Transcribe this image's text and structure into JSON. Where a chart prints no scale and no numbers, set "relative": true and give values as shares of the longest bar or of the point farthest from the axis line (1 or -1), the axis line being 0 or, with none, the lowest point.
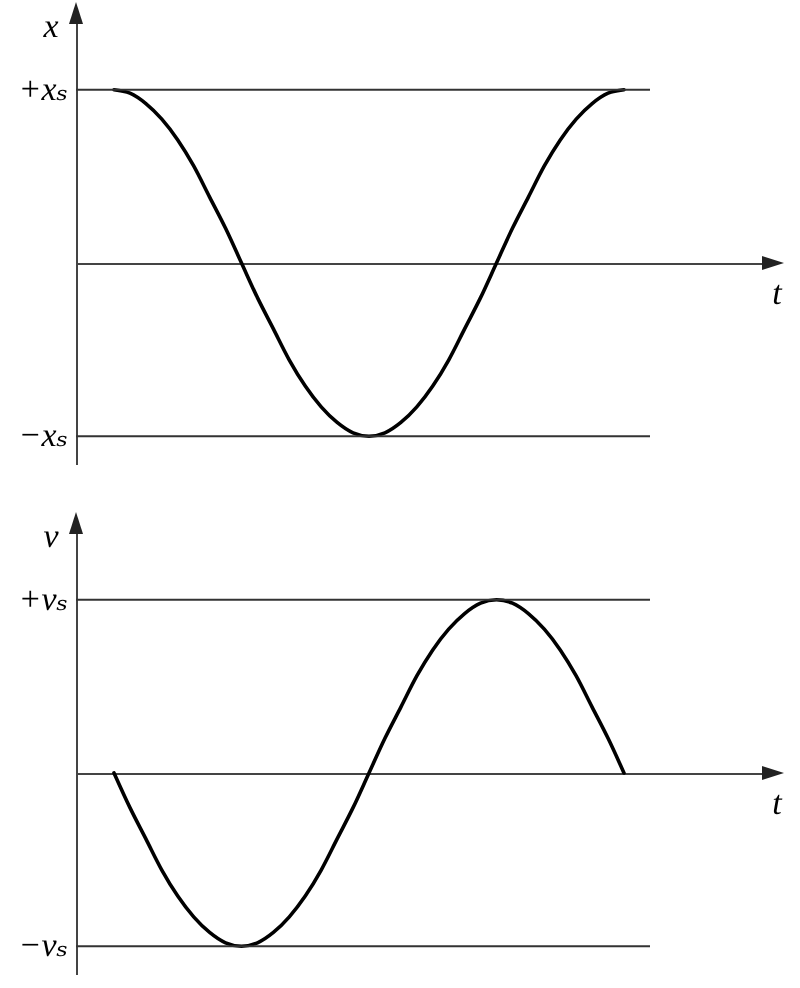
{
  "chart_data": [
    {
      "type": "line",
      "xlabel": "t",
      "ylabel": "x",
      "relative": true,
      "categories": [
        null,
        null,
        null,
        null,
        null,
        null,
        null,
        null,
        null,
        null,
        null,
        null,
        null,
        null,
        null,
        null,
        null,
        null,
        null,
        null,
        null,
        null,
        null,
        null,
        null,
        null,
        null,
        null,
        null,
        null,
        null,
        null,
        null
      ],
      "series": [
        {
          "color": "#000000",
          "values": [
            1,
            0.98,
            0.92,
            0.83,
            0.71,
            0.56,
            0.38,
            0.2,
            0,
            -0.2,
            -0.38,
            -0.56,
            -0.71,
            -0.83,
            -0.92,
            -0.98,
            -1,
            -0.98,
            -0.92,
            -0.83,
            -0.71,
            -0.56,
            -0.38,
            -0.2,
            0,
            0.2,
            0.38,
            0.56,
            0.71,
            0.83,
            0.92,
            0.98,
            1
          ]
        }
      ],
      "ref_lines": [
        {
          "axis": "y",
          "value": 1,
          "label": "+xₛ",
          "color": "#333333"
        },
        {
          "axis": "y",
          "value": -1,
          "label": "−xₛ",
          "color": "#333333"
        }
      ]
    },
    {
      "type": "line",
      "xlabel": "t",
      "ylabel": "v",
      "relative": true,
      "categories": [
        null,
        null,
        null,
        null,
        null,
        null,
        null,
        null,
        null,
        null,
        null,
        null,
        null,
        null,
        null,
        null,
        null,
        null,
        null,
        null,
        null,
        null,
        null,
        null,
        null,
        null,
        null,
        null,
        null,
        null,
        null,
        null,
        null
      ],
      "series": [
        {
          "color": "#000000",
          "values": [
            0,
            -0.2,
            -0.38,
            -0.56,
            -0.71,
            -0.83,
            -0.92,
            -0.98,
            -1,
            -0.98,
            -0.92,
            -0.83,
            -0.71,
            -0.56,
            -0.38,
            -0.2,
            0,
            0.2,
            0.38,
            0.56,
            0.71,
            0.83,
            0.92,
            0.98,
            1,
            0.98,
            0.92,
            0.83,
            0.71,
            0.56,
            0.38,
            0.2,
            0
          ]
        }
      ],
      "ref_lines": [
        {
          "axis": "y",
          "value": 1,
          "label": "+vₛ",
          "color": "#333333"
        },
        {
          "axis": "y",
          "value": -1,
          "label": "−vₛ",
          "color": "#333333"
        }
      ]
    }
  ]
}
